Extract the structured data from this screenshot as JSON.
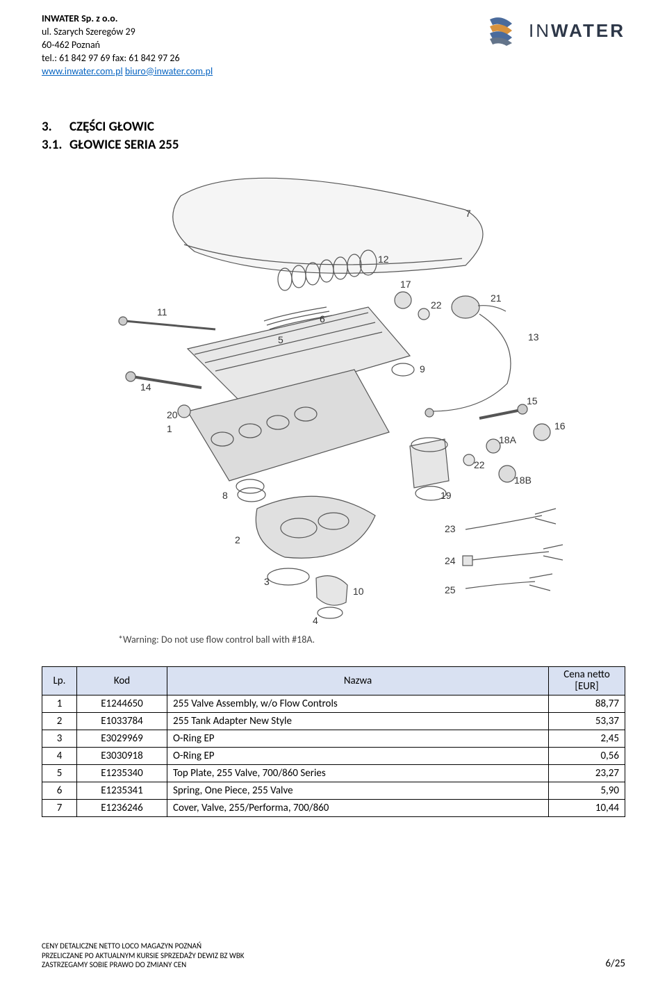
{
  "header": {
    "company": "INWATER Sp. z o.o.",
    "street": "ul. Szarych Szeregów 29",
    "city": "60-462 Poznań",
    "phone": "tel.: 61 842 97 69  fax: 61 842 97 26",
    "web": "www.inwater.com.pl",
    "email": "biuro@inwater.com.pl",
    "space": "  ",
    "logo_word_thin": "IN",
    "logo_word_bold": "WATER",
    "logo_colors": {
      "blue": "#4a6b9c",
      "orange": "#d7923e",
      "gray": "#63748a"
    }
  },
  "section": {
    "h1_num": "3.",
    "h1_text": "CZĘŚCI GŁOWIC",
    "h2_num": "3.1.",
    "h2_text": "GŁOWICE SERIA 255"
  },
  "diagram": {
    "warning": "*Warning: Do not use flow control ball with #18A.",
    "callouts": [
      "1",
      "2",
      "3",
      "4",
      "5",
      "6",
      "7",
      "8",
      "9",
      "10",
      "11",
      "12",
      "13",
      "14",
      "15",
      "16",
      "17",
      "18A",
      "18B",
      "19",
      "20",
      "21",
      "22",
      "22",
      "23",
      "24",
      "25"
    ],
    "line_color": "#555555",
    "callout_fontsize": 14
  },
  "table": {
    "headers": {
      "lp": "Lp.",
      "kod": "Kod",
      "nazwa": "Nazwa",
      "cena1": "Cena netto",
      "cena2": "[EUR]"
    },
    "rows": [
      {
        "lp": "1",
        "kod": "E1244650",
        "nazwa": "255 Valve Assembly, w/o Flow Controls",
        "cena": "88,77"
      },
      {
        "lp": "2",
        "kod": "E1033784",
        "nazwa": "255 Tank Adapter New Style",
        "cena": "53,37"
      },
      {
        "lp": "3",
        "kod": "E3029969",
        "nazwa": "O-Ring EP",
        "cena": "2,45"
      },
      {
        "lp": "4",
        "kod": "E3030918",
        "nazwa": "O-Ring EP",
        "cena": "0,56"
      },
      {
        "lp": "5",
        "kod": "E1235340",
        "nazwa": "Top Plate, 255 Valve, 700/860 Series",
        "cena": "23,27"
      },
      {
        "lp": "6",
        "kod": "E1235341",
        "nazwa": "Spring, One Piece, 255 Valve",
        "cena": "5,90"
      },
      {
        "lp": "7",
        "kod": "E1236246",
        "nazwa": "Cover, Valve, 255/Performa, 700/860",
        "cena": "10,44"
      }
    ],
    "header_bg": "#d9e1f2",
    "border_color": "#000000"
  },
  "footer": {
    "l1": "CENY DETALICZNE NETTO LOCO MAGAZYN POZNAŃ",
    "l2": "PRZELICZANE PO AKTUALNYM KURSIE SPRZEDAŻY DEWIZ BZ WBK",
    "l3": "ZASTRZEGAMY SOBIE PRAWO DO ZMIANY CEN",
    "page": "6/25"
  }
}
